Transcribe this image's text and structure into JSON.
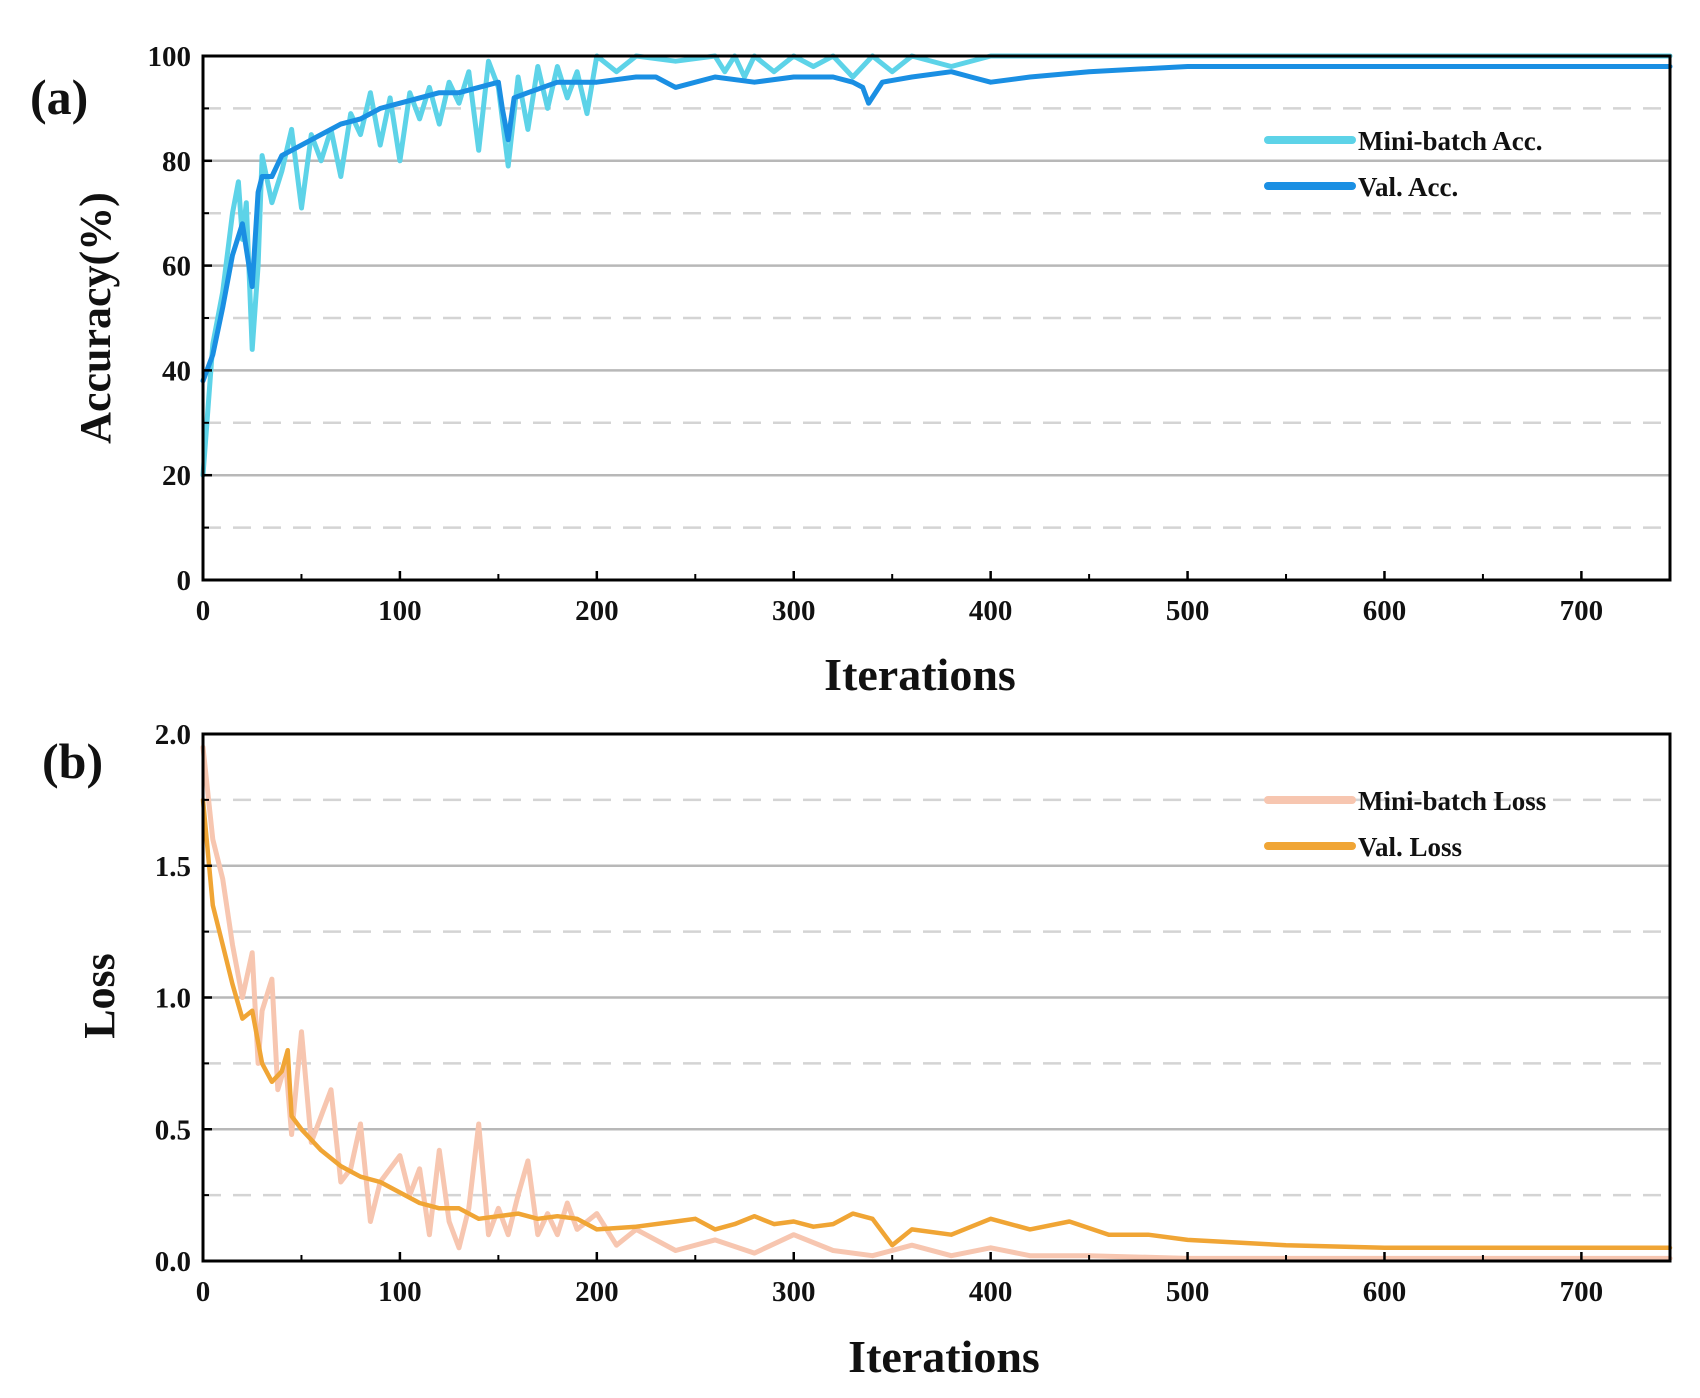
{
  "chart_data": [
    {
      "type": "line",
      "panel_label": "(a)",
      "xlabel": "Iterations",
      "ylabel": "Accuracy(%)",
      "xlim": [
        0,
        745
      ],
      "ylim": [
        0,
        100
      ],
      "x_ticks": [
        0,
        100,
        200,
        300,
        400,
        500,
        600,
        700
      ],
      "x_tick_labels": [
        "0",
        "100",
        "200",
        "300",
        "400",
        "500",
        "600",
        "700"
      ],
      "y_ticks": [
        0,
        20,
        40,
        60,
        80,
        100
      ],
      "y_tick_labels": [
        "0",
        "20",
        "40",
        "60",
        "80",
        "100"
      ],
      "grid": true,
      "legend_position": "top-right",
      "series": [
        {
          "name": "Mini-batch Acc.",
          "color": "#5dd3e8",
          "x": [
            0,
            5,
            10,
            15,
            18,
            20,
            22,
            25,
            28,
            30,
            35,
            40,
            45,
            50,
            55,
            60,
            65,
            70,
            75,
            80,
            85,
            90,
            95,
            100,
            105,
            110,
            115,
            120,
            125,
            130,
            135,
            140,
            145,
            150,
            155,
            160,
            165,
            170,
            175,
            180,
            185,
            190,
            195,
            200,
            210,
            220,
            240,
            260,
            265,
            270,
            275,
            280,
            290,
            300,
            310,
            320,
            330,
            340,
            350,
            360,
            380,
            400,
            420,
            450,
            500,
            550,
            600,
            650,
            700,
            745
          ],
          "y": [
            20,
            45,
            55,
            70,
            76,
            65,
            72,
            44,
            60,
            81,
            72,
            78,
            86,
            71,
            85,
            80,
            86,
            77,
            89,
            85,
            93,
            83,
            92,
            80,
            93,
            88,
            94,
            87,
            95,
            91,
            97,
            82,
            99,
            94,
            79,
            96,
            86,
            98,
            90,
            98,
            92,
            97,
            89,
            100,
            97,
            100,
            99,
            100,
            97,
            100,
            96,
            100,
            97,
            100,
            98,
            100,
            96,
            100,
            97,
            100,
            98,
            100,
            100,
            100,
            100,
            100,
            100,
            100,
            100,
            100
          ]
        },
        {
          "name": "Val. Acc.",
          "color": "#1a8fe3",
          "x": [
            0,
            5,
            10,
            15,
            20,
            25,
            28,
            30,
            35,
            40,
            50,
            60,
            70,
            80,
            90,
            100,
            110,
            120,
            130,
            140,
            150,
            152,
            155,
            158,
            165,
            180,
            200,
            220,
            230,
            240,
            260,
            280,
            300,
            320,
            330,
            335,
            338,
            345,
            360,
            380,
            390,
            400,
            420,
            450,
            500,
            550,
            600,
            650,
            700,
            745
          ],
          "y": [
            38,
            43,
            52,
            62,
            68,
            56,
            74,
            77,
            77,
            81,
            83,
            85,
            87,
            88,
            90,
            91,
            92,
            93,
            93,
            94,
            95,
            90,
            84,
            92,
            93,
            95,
            95,
            96,
            96,
            94,
            96,
            95,
            96,
            96,
            95,
            94,
            91,
            95,
            96,
            97,
            96,
            95,
            96,
            97,
            98,
            98,
            98,
            98,
            98,
            98
          ]
        }
      ]
    },
    {
      "type": "line",
      "panel_label": "(b)",
      "xlabel": "Iterations",
      "ylabel": "Loss",
      "xlim": [
        0,
        745
      ],
      "ylim": [
        0,
        2.0
      ],
      "x_ticks": [
        0,
        100,
        200,
        300,
        400,
        500,
        600,
        700
      ],
      "x_tick_labels": [
        "0",
        "100",
        "200",
        "300",
        "400",
        "500",
        "600",
        "700"
      ],
      "y_ticks": [
        0,
        0.5,
        1.0,
        1.5,
        2.0
      ],
      "y_tick_labels": [
        "0.0",
        "0.5",
        "1.0",
        "1.5",
        "2.0"
      ],
      "grid": true,
      "legend_position": "top-right",
      "series": [
        {
          "name": "Mini-batch Loss",
          "color": "#f7c6b0",
          "x": [
            0,
            5,
            10,
            15,
            20,
            25,
            28,
            30,
            35,
            38,
            42,
            45,
            50,
            55,
            60,
            65,
            70,
            75,
            80,
            85,
            90,
            95,
            100,
            105,
            110,
            115,
            120,
            125,
            130,
            135,
            140,
            145,
            150,
            155,
            160,
            165,
            170,
            175,
            180,
            185,
            190,
            200,
            210,
            220,
            240,
            260,
            280,
            300,
            320,
            340,
            360,
            380,
            400,
            420,
            450,
            500,
            550,
            600,
            650,
            700,
            745
          ],
          "y": [
            1.95,
            1.6,
            1.45,
            1.2,
            1.0,
            1.17,
            0.75,
            0.95,
            1.07,
            0.65,
            0.75,
            0.48,
            0.87,
            0.45,
            0.55,
            0.65,
            0.3,
            0.35,
            0.52,
            0.15,
            0.3,
            0.35,
            0.4,
            0.25,
            0.35,
            0.1,
            0.42,
            0.15,
            0.05,
            0.2,
            0.52,
            0.1,
            0.2,
            0.1,
            0.25,
            0.38,
            0.1,
            0.18,
            0.1,
            0.22,
            0.12,
            0.18,
            0.06,
            0.12,
            0.04,
            0.08,
            0.03,
            0.1,
            0.04,
            0.02,
            0.06,
            0.02,
            0.05,
            0.02,
            0.02,
            0.01,
            0.01,
            0.01,
            0.01,
            0.01,
            0.01
          ]
        },
        {
          "name": "Val. Loss",
          "color": "#f0a535",
          "x": [
            0,
            5,
            10,
            15,
            20,
            25,
            30,
            35,
            40,
            43,
            45,
            50,
            60,
            70,
            80,
            90,
            100,
            110,
            120,
            130,
            140,
            150,
            160,
            170,
            180,
            190,
            200,
            220,
            240,
            250,
            260,
            270,
            280,
            290,
            300,
            310,
            320,
            330,
            340,
            350,
            360,
            380,
            400,
            420,
            440,
            460,
            480,
            500,
            550,
            600,
            650,
            700,
            745
          ],
          "y": [
            1.75,
            1.35,
            1.2,
            1.05,
            0.92,
            0.95,
            0.75,
            0.68,
            0.72,
            0.8,
            0.55,
            0.5,
            0.42,
            0.36,
            0.32,
            0.3,
            0.26,
            0.22,
            0.2,
            0.2,
            0.16,
            0.17,
            0.18,
            0.16,
            0.17,
            0.16,
            0.12,
            0.13,
            0.15,
            0.16,
            0.12,
            0.14,
            0.17,
            0.14,
            0.15,
            0.13,
            0.14,
            0.18,
            0.16,
            0.06,
            0.12,
            0.1,
            0.16,
            0.12,
            0.15,
            0.1,
            0.1,
            0.08,
            0.06,
            0.05,
            0.05,
            0.05,
            0.05
          ]
        }
      ]
    }
  ]
}
